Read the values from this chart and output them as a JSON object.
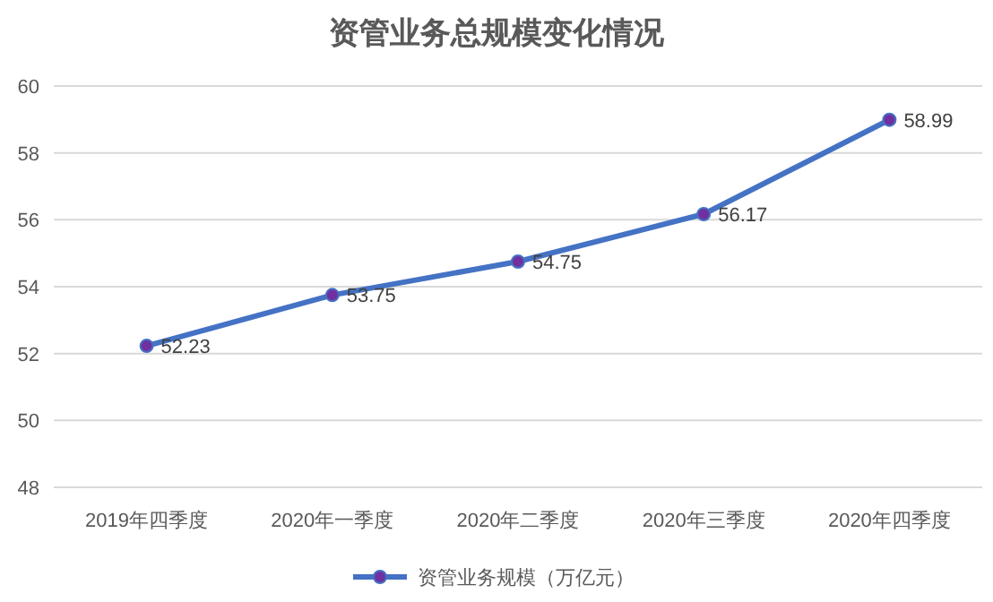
{
  "chart_data": {
    "type": "line",
    "title": "资管业务总规模变化情况",
    "categories": [
      "2019年四季度",
      "2020年一季度",
      "2020年二季度",
      "2020年三季度",
      "2020年四季度"
    ],
    "series": [
      {
        "name": "资管业务规模（万亿元）",
        "color": "#4472c4",
        "values": [
          52.23,
          53.75,
          54.75,
          56.17,
          58.99
        ]
      }
    ],
    "ylim": [
      48,
      60
    ],
    "yticks": [
      48,
      50,
      52,
      54,
      56,
      58,
      60
    ],
    "grid": "y",
    "legend": "bottom",
    "marker": "circle",
    "line_style": "solid",
    "data_labels": true
  }
}
